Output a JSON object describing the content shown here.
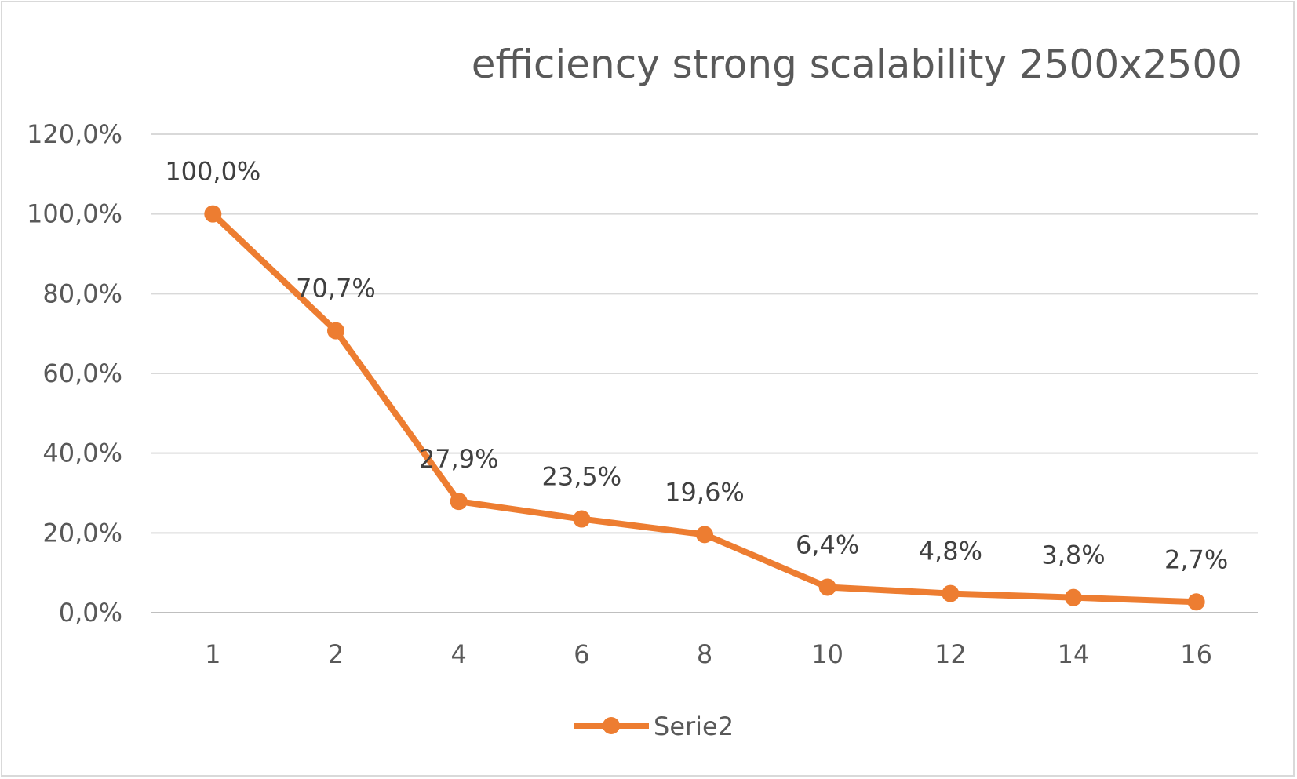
{
  "chart_data": {
    "type": "line",
    "title": "efficiency strong scalability 2500x2500",
    "xlabel": "",
    "ylabel": "",
    "categories": [
      "1",
      "2",
      "4",
      "6",
      "8",
      "10",
      "12",
      "14",
      "16"
    ],
    "series": [
      {
        "name": "Serie2",
        "color": "#ed7d31",
        "values": [
          100.0,
          70.7,
          27.9,
          23.5,
          19.6,
          6.4,
          4.8,
          3.8,
          2.7
        ],
        "data_labels": [
          "100,0%",
          "70,7%",
          "27,9%",
          "23,5%",
          "19,6%",
          "6,4%",
          "4,8%",
          "3,8%",
          "2,7%"
        ]
      }
    ],
    "ylim": [
      0,
      120
    ],
    "y_ticks": [
      0,
      20,
      40,
      60,
      80,
      100,
      120
    ],
    "y_tick_labels": [
      "0,0%",
      "20,0%",
      "40,0%",
      "60,0%",
      "80,0%",
      "100,0%",
      "120,0%"
    ],
    "grid": true,
    "legend_position": "bottom"
  }
}
